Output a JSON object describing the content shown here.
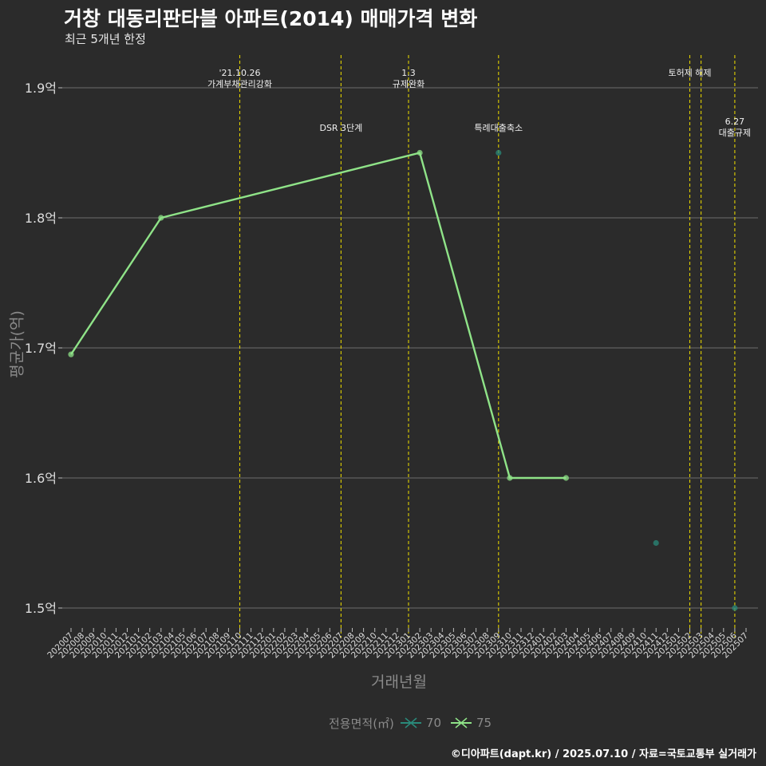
{
  "title": "거창 대동리판타블 아파트(2014) 매매가격 변화",
  "subtitle": "최근 5개년 한정",
  "footer": "©디아파트(dapt.kr) / 2025.07.10 / 자료=국토교통부 실거래가",
  "colors": {
    "background": "#2b2b2b",
    "grid": "#6e6e6e",
    "event_line": "#e0d000",
    "series_70": "#2a8a7a",
    "series_75": "#8fe388"
  },
  "chart_data": {
    "type": "line",
    "title": "거창 대동리판타블 아파트(2014) 매매가격 변화",
    "xlabel": "거래년월",
    "ylabel": "평균가(억)",
    "ylim": [
      1.48,
      1.94
    ],
    "yticks": [
      1.5,
      1.6,
      1.7,
      1.8,
      1.9
    ],
    "ytick_labels": [
      "1.5억",
      "1.6억",
      "1.7억",
      "1.8억",
      "1.9억"
    ],
    "categories": [
      "202007",
      "202008",
      "202009",
      "202010",
      "202011",
      "202012",
      "202101",
      "202102",
      "202103",
      "202104",
      "202105",
      "202106",
      "202107",
      "202108",
      "202109",
      "202110",
      "202111",
      "202112",
      "202201",
      "202202",
      "202203",
      "202204",
      "202205",
      "202206",
      "202207",
      "202208",
      "202209",
      "202210",
      "202211",
      "202212",
      "202301",
      "202302",
      "202303",
      "202304",
      "202305",
      "202306",
      "202307",
      "202308",
      "202309",
      "202310",
      "202311",
      "202312",
      "202401",
      "202402",
      "202403",
      "202404",
      "202405",
      "202406",
      "202407",
      "202408",
      "202409",
      "202410",
      "202411",
      "202412",
      "202501",
      "202502",
      "202503",
      "202504",
      "202505",
      "202506",
      "202507"
    ],
    "legend_title": "전용면적(㎡)",
    "series": [
      {
        "name": "70",
        "line": false,
        "points": [
          [
            "202309",
            1.85
          ],
          [
            "202411",
            1.55
          ],
          [
            "202506",
            1.5
          ]
        ]
      },
      {
        "name": "75",
        "line": true,
        "points": [
          [
            "202007",
            1.695
          ],
          [
            "202103",
            1.8
          ],
          [
            "202302",
            1.85
          ],
          [
            "202310",
            1.6
          ],
          [
            "202403",
            1.6
          ]
        ]
      }
    ],
    "events": [
      {
        "month": "202110",
        "lines": [
          "'21.10.26",
          "가계부채관리강화"
        ],
        "tier": 1
      },
      {
        "month": "202207",
        "lines": [
          "DSR 3단계"
        ],
        "tier": 2
      },
      {
        "month": "202301",
        "lines": [
          "1.3",
          "규제완화"
        ],
        "tier": 1
      },
      {
        "month": "202309",
        "lines": [
          "특례대출축소"
        ],
        "tier": 2
      },
      {
        "month": "202502",
        "lines": [
          "토허제 해제"
        ],
        "tier": 1
      },
      {
        "month": "202503",
        "lines": [],
        "tier": 1
      },
      {
        "month": "202506",
        "lines": [
          "6.27",
          "대출규제"
        ],
        "tier": 3
      }
    ]
  }
}
